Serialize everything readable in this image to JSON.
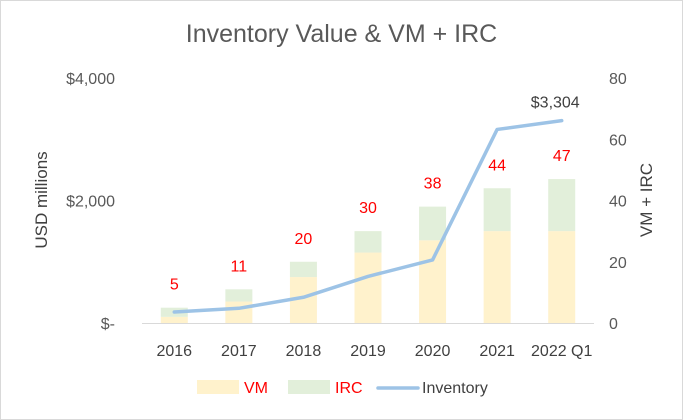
{
  "chart_data": {
    "type": "bar",
    "title": "Inventory Value & VM + IRC",
    "ylabel": "USD millions",
    "y2label": "VM + IRC",
    "categories": [
      "2016",
      "2017",
      "2018",
      "2019",
      "2020",
      "2021",
      "2022 Q1"
    ],
    "ylim": [
      0,
      4000
    ],
    "y2lim": [
      0,
      80
    ],
    "yticks": [
      {
        "value": 0,
        "label": "$-"
      },
      {
        "value": 2000,
        "label": "$2,000"
      },
      {
        "value": 4000,
        "label": "$4,000"
      }
    ],
    "y2ticks": [
      {
        "value": 0,
        "label": "0"
      },
      {
        "value": 20,
        "label": "20"
      },
      {
        "value": 40,
        "label": "40"
      },
      {
        "value": 60,
        "label": "60"
      },
      {
        "value": 80,
        "label": "80"
      }
    ],
    "series": [
      {
        "name": "VM",
        "type": "stacked-bar",
        "axis": "secondary",
        "color": "#fff2cc",
        "values": [
          2,
          7,
          15,
          23,
          27,
          30,
          30
        ]
      },
      {
        "name": "IRC",
        "type": "stacked-bar",
        "axis": "secondary",
        "color": "#e2efda",
        "values": [
          3,
          4,
          5,
          7,
          11,
          14,
          17
        ]
      },
      {
        "name": "Inventory",
        "type": "line",
        "axis": "primary",
        "color": "#9dc3e6",
        "values": [
          180,
          240,
          420,
          760,
          1030,
          3160,
          3304
        ]
      }
    ],
    "data_labels": [
      "5",
      "11",
      "20",
      "30",
      "38",
      "44",
      "47"
    ],
    "data_label_color": "#ff0000",
    "inventory_end_label": "$3,304",
    "legend": {
      "position": "bottom",
      "items": [
        "VM",
        "IRC",
        "Inventory"
      ]
    }
  }
}
